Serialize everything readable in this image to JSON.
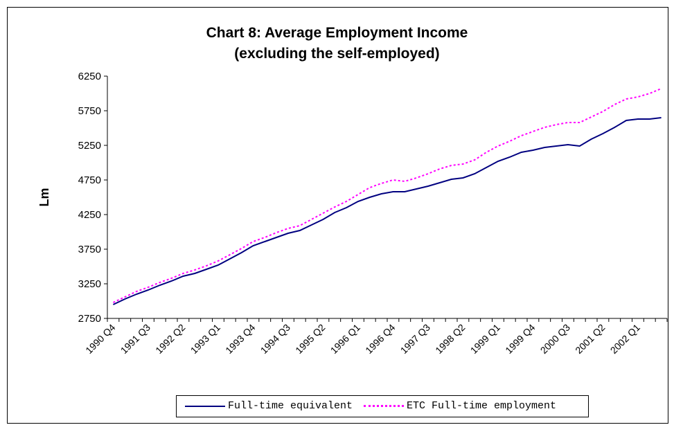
{
  "chart_data": {
    "type": "line",
    "title": "Chart 8: Average Employment Income",
    "subtitle": "(excluding the self-employed)",
    "xlabel": "",
    "ylabel": "Lm",
    "ylim": [
      2750,
      6250
    ],
    "yticks": [
      2750,
      3250,
      3750,
      4250,
      4750,
      5250,
      5750,
      6250
    ],
    "xtick_labels": [
      "1990 Q4",
      "1991 Q3",
      "1992 Q2",
      "1993 Q1",
      "1993 Q4",
      "1994 Q3",
      "1995 Q2",
      "1996 Q1",
      "1996 Q4",
      "1997 Q3",
      "1998 Q2",
      "1999 Q1",
      "1999 Q4",
      "2000 Q3",
      "2001 Q2",
      "2002 Q1"
    ],
    "xtick_every": 3,
    "grid": false,
    "legend_position": "bottom",
    "series": [
      {
        "name": "Full-time equivalent",
        "color": "#000080",
        "style": "solid",
        "values": [
          2950,
          3030,
          3100,
          3160,
          3230,
          3290,
          3360,
          3400,
          3460,
          3520,
          3610,
          3700,
          3800,
          3860,
          3920,
          3980,
          4020,
          4100,
          4180,
          4280,
          4350,
          4440,
          4500,
          4550,
          4580,
          4580,
          4620,
          4660,
          4710,
          4760,
          4780,
          4840,
          4930,
          5020,
          5080,
          5150,
          5180,
          5220,
          5240,
          5260,
          5240,
          5340,
          5420,
          5510,
          5610,
          5630,
          5630,
          5650
        ]
      },
      {
        "name": "ETC Full-time employment",
        "color": "#FF00FF",
        "style": "dotted",
        "values": [
          2980,
          3060,
          3140,
          3200,
          3270,
          3330,
          3400,
          3450,
          3510,
          3580,
          3670,
          3760,
          3860,
          3920,
          3990,
          4050,
          4090,
          4180,
          4270,
          4360,
          4440,
          4540,
          4640,
          4700,
          4750,
          4730,
          4780,
          4840,
          4910,
          4960,
          4980,
          5040,
          5150,
          5240,
          5310,
          5390,
          5450,
          5510,
          5550,
          5580,
          5580,
          5660,
          5740,
          5840,
          5920,
          5950,
          6000,
          6070
        ]
      }
    ]
  }
}
